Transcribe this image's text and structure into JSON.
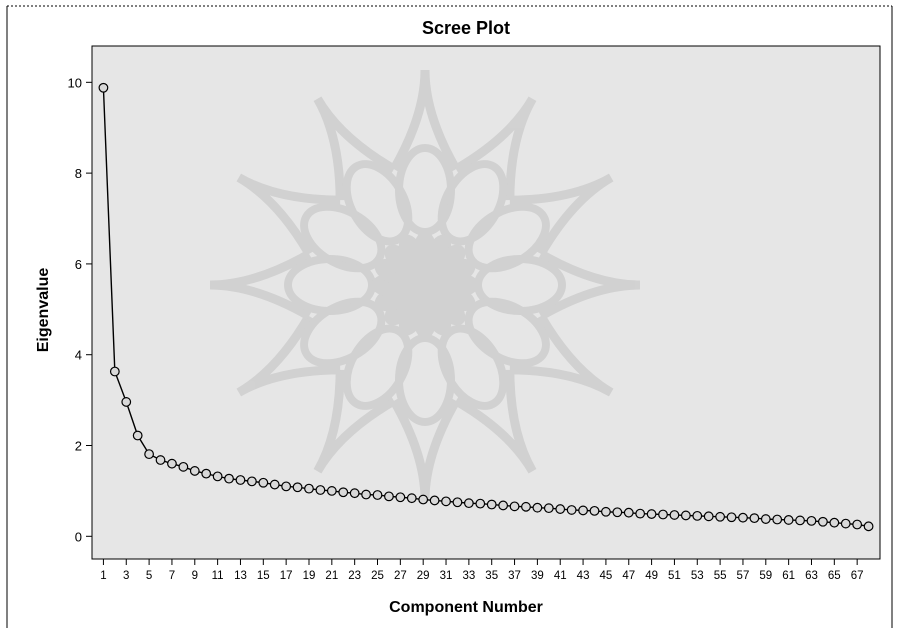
{
  "chart_data": {
    "type": "line",
    "title": "Scree Plot",
    "xlabel": "Component Number",
    "ylabel": "Eigenvalue",
    "ylim": [
      -0.5,
      10.8
    ],
    "yticks": [
      0,
      2,
      4,
      6,
      8,
      10
    ],
    "xlim": [
      0,
      69
    ],
    "xticks": [
      1,
      3,
      5,
      7,
      9,
      11,
      13,
      15,
      17,
      19,
      21,
      23,
      25,
      27,
      29,
      31,
      33,
      35,
      37,
      39,
      41,
      43,
      45,
      47,
      49,
      51,
      53,
      55,
      57,
      59,
      61,
      63,
      65,
      67
    ],
    "grid": false,
    "legend": "none",
    "x": [
      1,
      2,
      3,
      4,
      5,
      6,
      7,
      8,
      9,
      10,
      11,
      12,
      13,
      14,
      15,
      16,
      17,
      18,
      19,
      20,
      21,
      22,
      23,
      24,
      25,
      26,
      27,
      28,
      29,
      30,
      31,
      32,
      33,
      34,
      35,
      36,
      37,
      38,
      39,
      40,
      41,
      42,
      43,
      44,
      45,
      46,
      47,
      48,
      49,
      50,
      51,
      52,
      53,
      54,
      55,
      56,
      57,
      58,
      59,
      60,
      61,
      62,
      63,
      64,
      65,
      66,
      67,
      68
    ],
    "values": [
      9.88,
      3.63,
      2.96,
      2.22,
      1.81,
      1.68,
      1.6,
      1.53,
      1.44,
      1.38,
      1.32,
      1.27,
      1.24,
      1.21,
      1.18,
      1.14,
      1.1,
      1.08,
      1.05,
      1.02,
      1.0,
      0.97,
      0.95,
      0.92,
      0.91,
      0.88,
      0.86,
      0.84,
      0.81,
      0.79,
      0.77,
      0.75,
      0.73,
      0.72,
      0.7,
      0.68,
      0.66,
      0.65,
      0.63,
      0.62,
      0.6,
      0.58,
      0.57,
      0.56,
      0.54,
      0.53,
      0.52,
      0.5,
      0.49,
      0.48,
      0.47,
      0.46,
      0.45,
      0.44,
      0.43,
      0.42,
      0.41,
      0.4,
      0.38,
      0.37,
      0.36,
      0.35,
      0.34,
      0.32,
      0.3,
      0.28,
      0.26,
      0.22
    ],
    "colors": {
      "plot_bg": "#e6e6e6",
      "line": "#000000",
      "marker_face": "#d9d9d9",
      "watermark": "#cfcfcf"
    }
  }
}
